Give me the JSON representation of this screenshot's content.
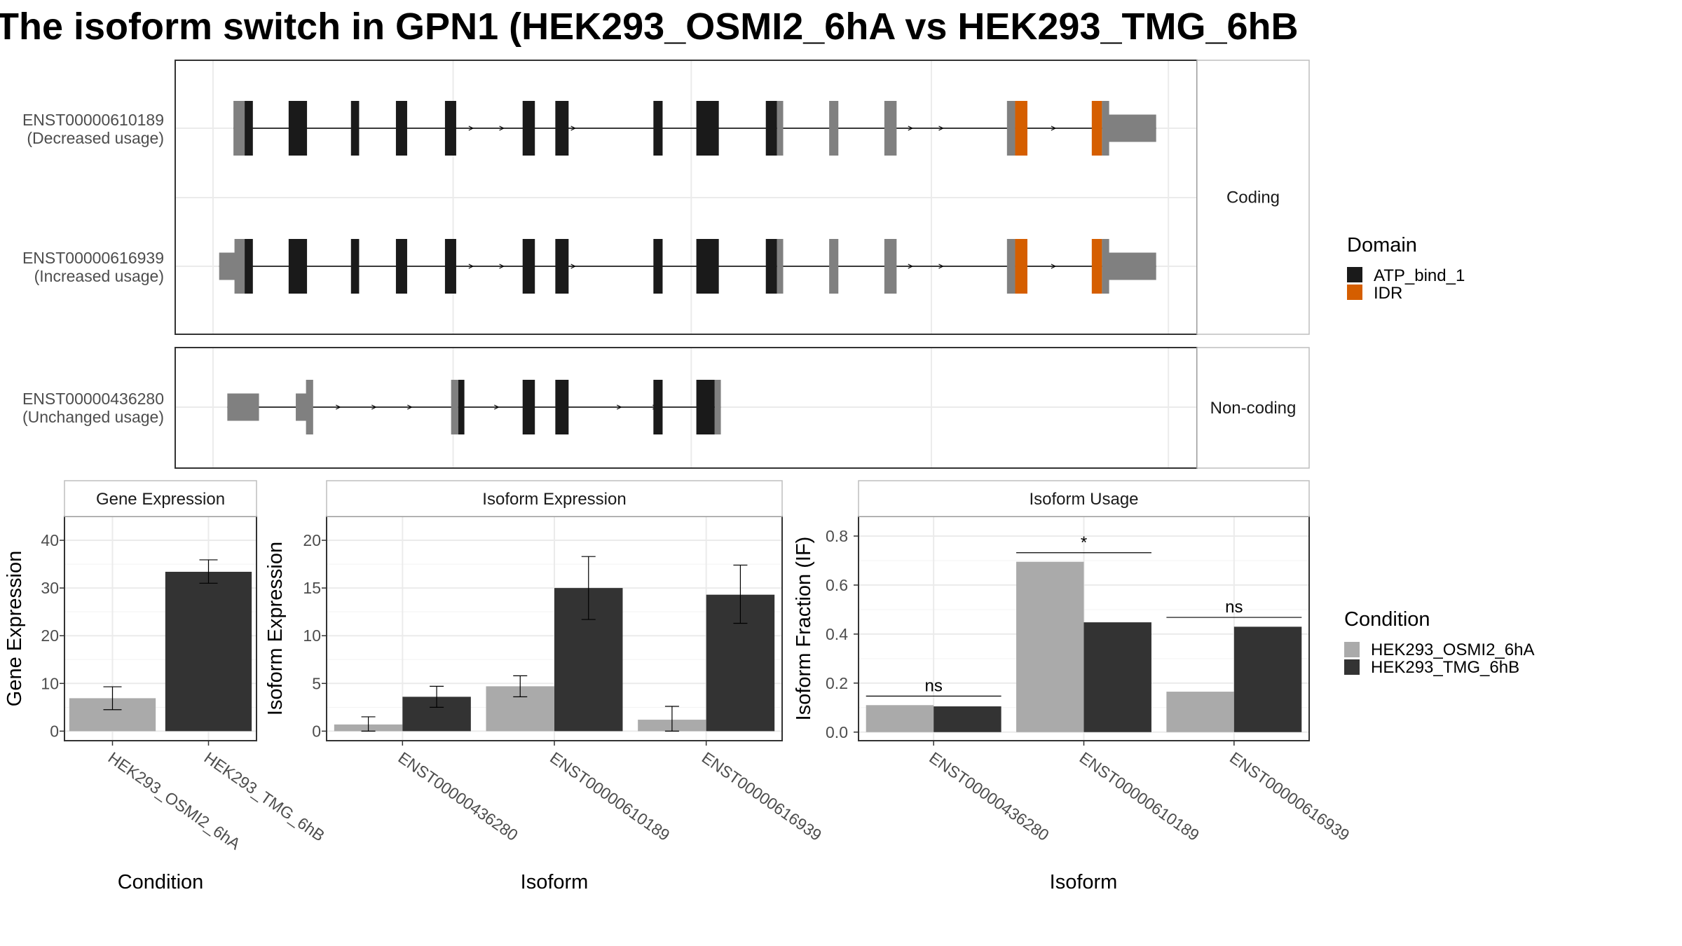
{
  "title": "The isoform switch in GPN1 (HEK293_OSMI2_6hA vs HEK293_TMG_6hB",
  "colors": {
    "domain_atp": "#1a1a1a",
    "domain_idr": "#d55e00",
    "utr": "#808080",
    "cond_a": "#aaaaaa",
    "cond_b": "#333333",
    "strip_bg": "#ffffff",
    "grid": "#ebebeb"
  },
  "transcripts": {
    "groups": [
      {
        "label": "Coding",
        "rows": [
          {
            "id": "ENST00000610189",
            "usage": "(Decreased usage)",
            "intron_arrows": [
              0.29,
              0.32,
              0.39,
              0.72,
              0.75,
              0.83,
              0.86
            ],
            "features": [
              {
                "s": 0.057,
                "e": 0.068,
                "type": "utr"
              },
              {
                "s": 0.058,
                "e": 0.075,
                "type": "utr",
                "tall": true
              },
              {
                "s": 0.068,
                "e": 0.076,
                "type": "atp"
              },
              {
                "s": 0.111,
                "e": 0.129,
                "type": "atp"
              },
              {
                "s": 0.172,
                "e": 0.18,
                "type": "atp"
              },
              {
                "s": 0.216,
                "e": 0.227,
                "type": "atp"
              },
              {
                "s": 0.264,
                "e": 0.275,
                "type": "atp"
              },
              {
                "s": 0.34,
                "e": 0.352,
                "type": "atp"
              },
              {
                "s": 0.372,
                "e": 0.385,
                "type": "atp"
              },
              {
                "s": 0.468,
                "e": 0.477,
                "type": "atp"
              },
              {
                "s": 0.51,
                "e": 0.532,
                "type": "atp"
              },
              {
                "s": 0.578,
                "e": 0.589,
                "type": "atp"
              },
              {
                "s": 0.589,
                "e": 0.595,
                "type": "utr"
              },
              {
                "s": 0.64,
                "e": 0.649,
                "type": "utr"
              },
              {
                "s": 0.694,
                "e": 0.706,
                "type": "utr"
              },
              {
                "s": 0.814,
                "e": 0.822,
                "type": "utr"
              },
              {
                "s": 0.822,
                "e": 0.834,
                "type": "idr"
              },
              {
                "s": 0.897,
                "e": 0.907,
                "type": "idr"
              },
              {
                "s": 0.907,
                "e": 0.914,
                "type": "utr"
              },
              {
                "s": 0.91,
                "e": 0.96,
                "type": "utr",
                "short": true
              }
            ]
          },
          {
            "id": "ENST00000616939",
            "usage": "(Increased usage)",
            "intron_arrows": [
              0.29,
              0.32,
              0.39,
              0.72,
              0.75,
              0.83,
              0.86
            ],
            "features": [
              {
                "s": 0.043,
                "e": 0.068,
                "type": "utr",
                "short": true
              },
              {
                "s": 0.058,
                "e": 0.075,
                "type": "utr",
                "tall": true
              },
              {
                "s": 0.068,
                "e": 0.076,
                "type": "atp"
              },
              {
                "s": 0.111,
                "e": 0.129,
                "type": "atp"
              },
              {
                "s": 0.172,
                "e": 0.18,
                "type": "atp"
              },
              {
                "s": 0.216,
                "e": 0.227,
                "type": "atp"
              },
              {
                "s": 0.264,
                "e": 0.275,
                "type": "atp"
              },
              {
                "s": 0.34,
                "e": 0.352,
                "type": "atp"
              },
              {
                "s": 0.372,
                "e": 0.385,
                "type": "atp"
              },
              {
                "s": 0.468,
                "e": 0.477,
                "type": "atp"
              },
              {
                "s": 0.51,
                "e": 0.532,
                "type": "atp"
              },
              {
                "s": 0.578,
                "e": 0.589,
                "type": "atp"
              },
              {
                "s": 0.589,
                "e": 0.595,
                "type": "utr"
              },
              {
                "s": 0.64,
                "e": 0.649,
                "type": "utr"
              },
              {
                "s": 0.694,
                "e": 0.706,
                "type": "utr"
              },
              {
                "s": 0.814,
                "e": 0.822,
                "type": "utr"
              },
              {
                "s": 0.822,
                "e": 0.834,
                "type": "idr"
              },
              {
                "s": 0.897,
                "e": 0.907,
                "type": "idr"
              },
              {
                "s": 0.907,
                "e": 0.914,
                "type": "utr"
              },
              {
                "s": 0.91,
                "e": 0.96,
                "type": "utr",
                "short": true
              }
            ]
          }
        ]
      },
      {
        "label": "Non-coding",
        "rows": [
          {
            "id": "ENST00000436280",
            "usage": "(Unchanged usage)",
            "intron_arrows": [
              0.16,
              0.195,
              0.23,
              0.315,
              0.35,
              0.435,
              0.47
            ],
            "features": [
              {
                "s": 0.051,
                "e": 0.082,
                "type": "utr",
                "short": true
              },
              {
                "s": 0.118,
                "e": 0.132,
                "type": "utr",
                "short": true
              },
              {
                "s": 0.128,
                "e": 0.135,
                "type": "utr",
                "tall": true
              },
              {
                "s": 0.27,
                "e": 0.277,
                "type": "utr",
                "tall": true
              },
              {
                "s": 0.277,
                "e": 0.283,
                "type": "atp"
              },
              {
                "s": 0.34,
                "e": 0.352,
                "type": "atp"
              },
              {
                "s": 0.372,
                "e": 0.385,
                "type": "atp"
              },
              {
                "s": 0.468,
                "e": 0.477,
                "type": "atp"
              },
              {
                "s": 0.51,
                "e": 0.528,
                "type": "atp"
              },
              {
                "s": 0.528,
                "e": 0.534,
                "type": "utr"
              }
            ]
          }
        ]
      }
    ]
  },
  "domain_legend": {
    "title": "Domain",
    "items": [
      {
        "label": "ATP_bind_1",
        "color": "#1a1a1a"
      },
      {
        "label": "IDR",
        "color": "#d55e00"
      }
    ]
  },
  "condition_legend": {
    "title": "Condition",
    "items": [
      {
        "label": "HEK293_OSMI2_6hA",
        "color": "#aaaaaa"
      },
      {
        "label": "HEK293_TMG_6hB",
        "color": "#333333"
      }
    ]
  },
  "chart_data": [
    {
      "type": "bar",
      "title": "Gene Expression",
      "xlabel": "Condition",
      "ylabel": "Gene Expression",
      "ylim": [
        -2,
        45
      ],
      "yticks": [
        0,
        10,
        20,
        30,
        40
      ],
      "categories": [
        "HEK293_OSMI2_6hA",
        "HEK293_TMG_6hB"
      ],
      "values": [
        6.9,
        33.4
      ],
      "errors": [
        [
          4.5,
          9.3
        ],
        [
          31.0,
          35.9
        ]
      ],
      "colors": [
        "#aaaaaa",
        "#333333"
      ],
      "grid": true
    },
    {
      "type": "bar",
      "title": "Isoform Expression",
      "xlabel": "Isoform",
      "ylabel": "Isoform Expression",
      "ylim": [
        -1,
        22.5
      ],
      "yticks": [
        0,
        5,
        10,
        15,
        20
      ],
      "categories": [
        "ENST00000436280",
        "ENST00000610189",
        "ENST00000616939"
      ],
      "series": [
        {
          "values": [
            0.7,
            4.7,
            1.2
          ],
          "errors": [
            [
              0.0,
              1.5
            ],
            [
              3.6,
              5.8
            ],
            [
              0.0,
              2.6
            ]
          ]
        },
        {
          "values": [
            3.6,
            15.0,
            14.3
          ],
          "errors": [
            [
              2.5,
              4.7
            ],
            [
              11.7,
              18.3
            ],
            [
              11.3,
              17.4
            ]
          ]
        }
      ],
      "grid": true
    },
    {
      "type": "bar",
      "title": "Isoform Usage",
      "xlabel": "Isoform",
      "ylabel": "Isoform Fraction (IF)",
      "ylim": [
        -0.035,
        0.88
      ],
      "yticks": [
        0.0,
        0.2,
        0.4,
        0.6,
        0.8
      ],
      "ytick_labels": [
        "0.0",
        "0.2",
        "0.4",
        "0.6",
        "0.8"
      ],
      "categories": [
        "ENST00000436280",
        "ENST00000610189",
        "ENST00000616939"
      ],
      "series": [
        {
          "values": [
            0.11,
            0.695,
            0.165
          ]
        },
        {
          "values": [
            0.105,
            0.448,
            0.43
          ]
        }
      ],
      "significance": [
        {
          "label": "ns",
          "y": 0.147
        },
        {
          "label": "*",
          "y": 0.732
        },
        {
          "label": "ns",
          "y": 0.468
        }
      ],
      "grid": true
    }
  ]
}
